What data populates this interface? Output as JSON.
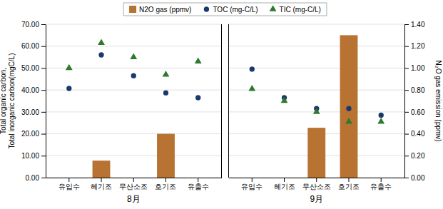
{
  "chart_data": [
    {
      "type": "bar",
      "xlabel": "8月",
      "categories": [
        "유입수",
        "혜기조",
        "무산소조",
        "호기조",
        "유출수"
      ],
      "series": [
        {
          "name": "N2O gas (ppmv)",
          "type": "bar",
          "axis": "y2",
          "color": "#b87333",
          "values": [
            0.0,
            0.155,
            0.0,
            0.4,
            0.0
          ]
        },
        {
          "name": "TOC (mg-C/L)",
          "type": "scatter",
          "marker": "circle",
          "color": "#1a3a6b",
          "values": [
            40.7,
            56.0,
            46.5,
            38.7,
            36.5
          ]
        },
        {
          "name": "TIC (mg-C/L)",
          "type": "scatter",
          "marker": "triangle",
          "color": "#2d7a2d",
          "values": [
            50.0,
            61.5,
            55.0,
            47.0,
            53.0
          ]
        }
      ],
      "ylabel": "Total organic carbon,\nTotal inorganic carbon(mgC/L)",
      "ylim": [
        0.0,
        70.0
      ],
      "yticks": [
        {
          "value": 0.0,
          "label": "0.00"
        },
        {
          "value": 10.0,
          "label": "10.00"
        },
        {
          "value": 20.0,
          "label": "20.00"
        },
        {
          "value": 30.0,
          "label": "30.00"
        },
        {
          "value": 40.0,
          "label": "40.00"
        },
        {
          "value": 50.0,
          "label": "50.00"
        },
        {
          "value": 60.0,
          "label": "60.00"
        },
        {
          "value": 70.0,
          "label": "70.00"
        }
      ],
      "y2lim": [
        0.0,
        1.4
      ],
      "grid": true,
      "legend": "top"
    },
    {
      "type": "bar",
      "xlabel": "9月",
      "categories": [
        "유입수",
        "혜기조",
        "무산소조",
        "호기조",
        "유출수"
      ],
      "series": [
        {
          "name": "N2O gas (ppmv)",
          "type": "bar",
          "axis": "y2",
          "color": "#b87333",
          "values": [
            0.0,
            0.0,
            0.455,
            1.3,
            0.0
          ]
        },
        {
          "name": "TOC (mg-C/L)",
          "type": "scatter",
          "marker": "circle",
          "color": "#1a3a6b",
          "values": [
            49.5,
            36.5,
            31.5,
            31.5,
            28.5
          ]
        },
        {
          "name": "TIC (mg-C/L)",
          "type": "scatter",
          "marker": "triangle",
          "color": "#2d7a2d",
          "values": [
            40.5,
            35.0,
            30.0,
            25.5,
            25.5
          ]
        }
      ],
      "ylim": [
        0.0,
        70.0
      ],
      "y2label": "N₂O gas emission (ppmv)",
      "y2lim": [
        0.0,
        1.4
      ],
      "y2ticks": [
        {
          "value": 0.0,
          "label": "0.00"
        },
        {
          "value": 0.2,
          "label": "0.20"
        },
        {
          "value": 0.4,
          "label": "0.40"
        },
        {
          "value": 0.6,
          "label": "0.60"
        },
        {
          "value": 0.8,
          "label": "0.80"
        },
        {
          "value": 1.0,
          "label": "1.00"
        },
        {
          "value": 1.2,
          "label": "1.20"
        },
        {
          "value": 1.4,
          "label": "1.40"
        }
      ],
      "grid": true
    }
  ]
}
